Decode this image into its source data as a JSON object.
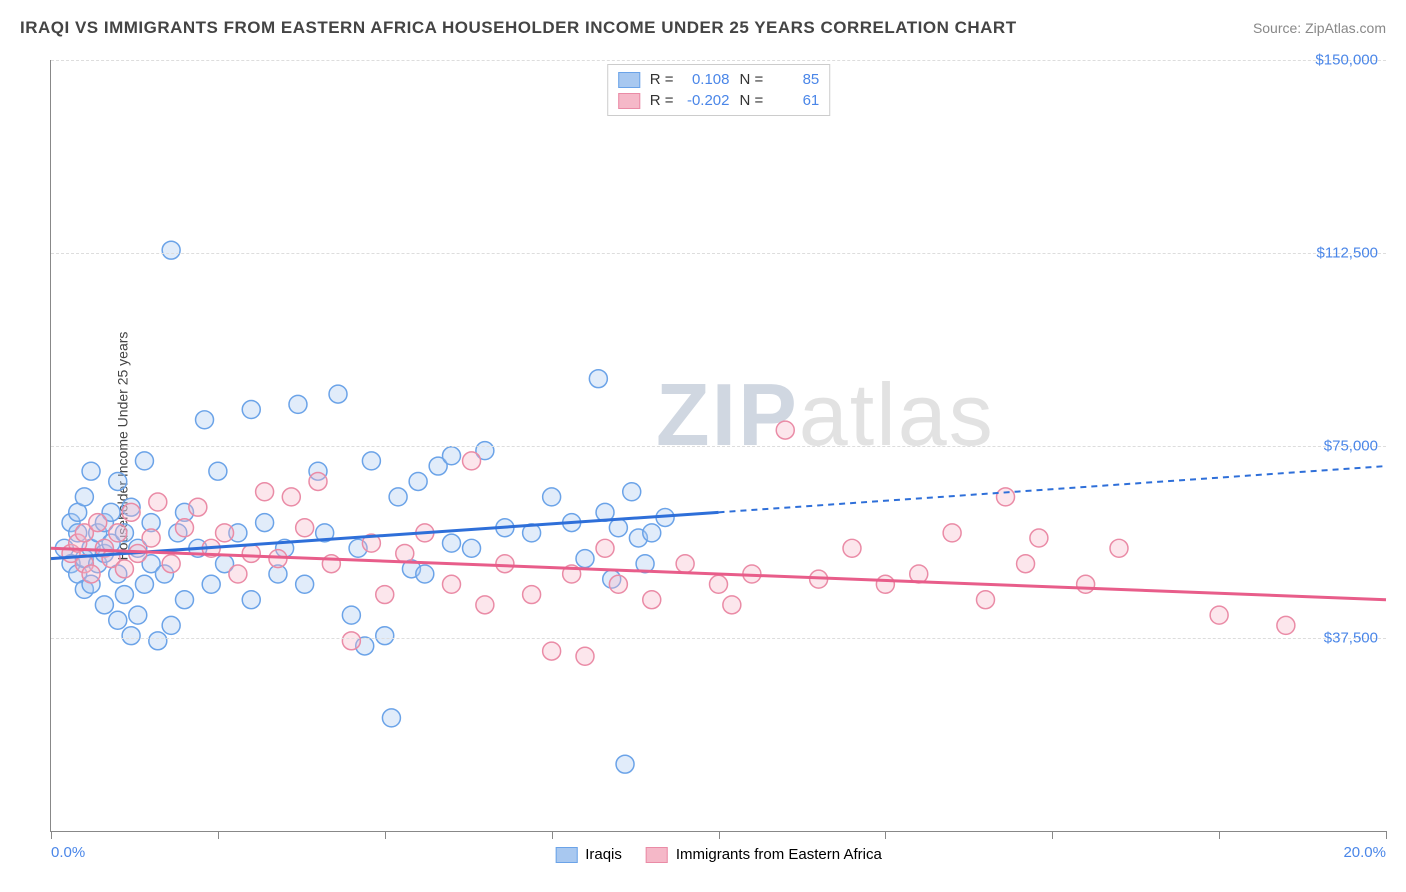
{
  "title": "IRAQI VS IMMIGRANTS FROM EASTERN AFRICA HOUSEHOLDER INCOME UNDER 25 YEARS CORRELATION CHART",
  "source": "Source: ZipAtlas.com",
  "ylabel": "Householder Income Under 25 years",
  "watermark": {
    "part1": "ZIP",
    "part2": "atlas"
  },
  "chart": {
    "type": "scatter",
    "xlim": [
      0,
      20
    ],
    "ylim": [
      0,
      150000
    ],
    "xaxis": {
      "min_label": "0.0%",
      "max_label": "20.0%",
      "tick_positions_pct": [
        0,
        12.5,
        25,
        37.5,
        50,
        62.5,
        75,
        87.5,
        100
      ]
    },
    "yaxis": {
      "gridlines": [
        {
          "value": 37500,
          "label": "$37,500"
        },
        {
          "value": 75000,
          "label": "$75,000"
        },
        {
          "value": 112500,
          "label": "$112,500"
        },
        {
          "value": 150000,
          "label": "$150,000"
        }
      ]
    },
    "background_color": "#ffffff",
    "grid_color": "#dddddd",
    "axis_color": "#888888",
    "tick_label_color": "#4a86e8",
    "marker_radius": 9,
    "marker_stroke_width": 1.5,
    "marker_fill_opacity": 0.35,
    "series": [
      {
        "name": "Iraqis",
        "color_fill": "#a8c8f0",
        "color_stroke": "#6ba3e8",
        "line_color": "#2e6fd9",
        "line_width": 3,
        "dash_color": "#2e6fd9",
        "dash_pattern": "6,5",
        "R": "0.108",
        "N": "85",
        "regression": {
          "x1": 0,
          "y1": 53000,
          "x_solid_end": 10,
          "y_solid_end": 62000,
          "x2": 20,
          "y2": 71000
        },
        "points": [
          [
            0.2,
            55000
          ],
          [
            0.3,
            60000
          ],
          [
            0.3,
            52000
          ],
          [
            0.4,
            58000
          ],
          [
            0.4,
            50000
          ],
          [
            0.4,
            62000
          ],
          [
            0.5,
            47000
          ],
          [
            0.5,
            65000
          ],
          [
            0.5,
            53000
          ],
          [
            0.6,
            70000
          ],
          [
            0.6,
            55000
          ],
          [
            0.6,
            48000
          ],
          [
            0.7,
            58000
          ],
          [
            0.7,
            52000
          ],
          [
            0.8,
            60000
          ],
          [
            0.8,
            54000
          ],
          [
            0.8,
            44000
          ],
          [
            0.9,
            62000
          ],
          [
            0.9,
            56000
          ],
          [
            1.0,
            41000
          ],
          [
            1.0,
            68000
          ],
          [
            1.0,
            50000
          ],
          [
            1.1,
            46000
          ],
          [
            1.1,
            58000
          ],
          [
            1.2,
            38000
          ],
          [
            1.2,
            63000
          ],
          [
            1.3,
            42000
          ],
          [
            1.3,
            55000
          ],
          [
            1.4,
            72000
          ],
          [
            1.4,
            48000
          ],
          [
            1.5,
            60000
          ],
          [
            1.5,
            52000
          ],
          [
            1.6,
            37000
          ],
          [
            1.7,
            50000
          ],
          [
            1.8,
            40000
          ],
          [
            1.8,
            113000
          ],
          [
            1.9,
            58000
          ],
          [
            2.0,
            45000
          ],
          [
            2.0,
            62000
          ],
          [
            2.2,
            55000
          ],
          [
            2.3,
            80000
          ],
          [
            2.4,
            48000
          ],
          [
            2.5,
            70000
          ],
          [
            2.6,
            52000
          ],
          [
            2.8,
            58000
          ],
          [
            3.0,
            45000
          ],
          [
            3.0,
            82000
          ],
          [
            3.2,
            60000
          ],
          [
            3.4,
            50000
          ],
          [
            3.5,
            55000
          ],
          [
            3.7,
            83000
          ],
          [
            3.8,
            48000
          ],
          [
            4.0,
            70000
          ],
          [
            4.1,
            58000
          ],
          [
            4.3,
            85000
          ],
          [
            4.5,
            42000
          ],
          [
            4.6,
            55000
          ],
          [
            4.7,
            36000
          ],
          [
            4.8,
            72000
          ],
          [
            5.0,
            38000
          ],
          [
            5.1,
            22000
          ],
          [
            5.2,
            65000
          ],
          [
            5.4,
            51000
          ],
          [
            5.5,
            68000
          ],
          [
            5.6,
            50000
          ],
          [
            5.8,
            71000
          ],
          [
            6.0,
            56000
          ],
          [
            6.0,
            73000
          ],
          [
            6.3,
            55000
          ],
          [
            6.5,
            74000
          ],
          [
            6.8,
            59000
          ],
          [
            7.2,
            58000
          ],
          [
            7.5,
            65000
          ],
          [
            7.8,
            60000
          ],
          [
            8.0,
            53000
          ],
          [
            8.2,
            88000
          ],
          [
            8.3,
            62000
          ],
          [
            8.4,
            49000
          ],
          [
            8.5,
            59000
          ],
          [
            8.6,
            13000
          ],
          [
            8.7,
            66000
          ],
          [
            8.8,
            57000
          ],
          [
            8.9,
            52000
          ],
          [
            9.0,
            58000
          ],
          [
            9.2,
            61000
          ]
        ]
      },
      {
        "name": "Immigrants from Eastern Africa",
        "color_fill": "#f5b8c8",
        "color_stroke": "#ea8ba6",
        "line_color": "#e85d8a",
        "line_width": 3,
        "R": "-0.202",
        "N": "61",
        "regression": {
          "x1": 0,
          "y1": 55000,
          "x_solid_end": 20,
          "y_solid_end": 45000,
          "x2": 20,
          "y2": 45000
        },
        "points": [
          [
            0.3,
            54000
          ],
          [
            0.4,
            56000
          ],
          [
            0.5,
            52000
          ],
          [
            0.5,
            58000
          ],
          [
            0.6,
            50000
          ],
          [
            0.7,
            60000
          ],
          [
            0.8,
            55000
          ],
          [
            0.9,
            53000
          ],
          [
            1.0,
            58000
          ],
          [
            1.1,
            51000
          ],
          [
            1.2,
            62000
          ],
          [
            1.3,
            54000
          ],
          [
            1.5,
            57000
          ],
          [
            1.6,
            64000
          ],
          [
            1.8,
            52000
          ],
          [
            2.0,
            59000
          ],
          [
            2.2,
            63000
          ],
          [
            2.4,
            55000
          ],
          [
            2.6,
            58000
          ],
          [
            2.8,
            50000
          ],
          [
            3.0,
            54000
          ],
          [
            3.2,
            66000
          ],
          [
            3.4,
            53000
          ],
          [
            3.6,
            65000
          ],
          [
            3.8,
            59000
          ],
          [
            4.0,
            68000
          ],
          [
            4.2,
            52000
          ],
          [
            4.5,
            37000
          ],
          [
            4.8,
            56000
          ],
          [
            5.0,
            46000
          ],
          [
            5.3,
            54000
          ],
          [
            5.6,
            58000
          ],
          [
            6.0,
            48000
          ],
          [
            6.3,
            72000
          ],
          [
            6.5,
            44000
          ],
          [
            6.8,
            52000
          ],
          [
            7.2,
            46000
          ],
          [
            7.5,
            35000
          ],
          [
            7.8,
            50000
          ],
          [
            8.0,
            34000
          ],
          [
            8.3,
            55000
          ],
          [
            8.5,
            48000
          ],
          [
            9.0,
            45000
          ],
          [
            9.5,
            52000
          ],
          [
            10.0,
            48000
          ],
          [
            10.2,
            44000
          ],
          [
            10.5,
            50000
          ],
          [
            11.0,
            78000
          ],
          [
            11.5,
            49000
          ],
          [
            12.0,
            55000
          ],
          [
            12.5,
            48000
          ],
          [
            13.0,
            50000
          ],
          [
            13.5,
            58000
          ],
          [
            14.0,
            45000
          ],
          [
            14.3,
            65000
          ],
          [
            14.6,
            52000
          ],
          [
            14.8,
            57000
          ],
          [
            15.5,
            48000
          ],
          [
            16.0,
            55000
          ],
          [
            17.5,
            42000
          ],
          [
            18.5,
            40000
          ]
        ]
      }
    ]
  }
}
